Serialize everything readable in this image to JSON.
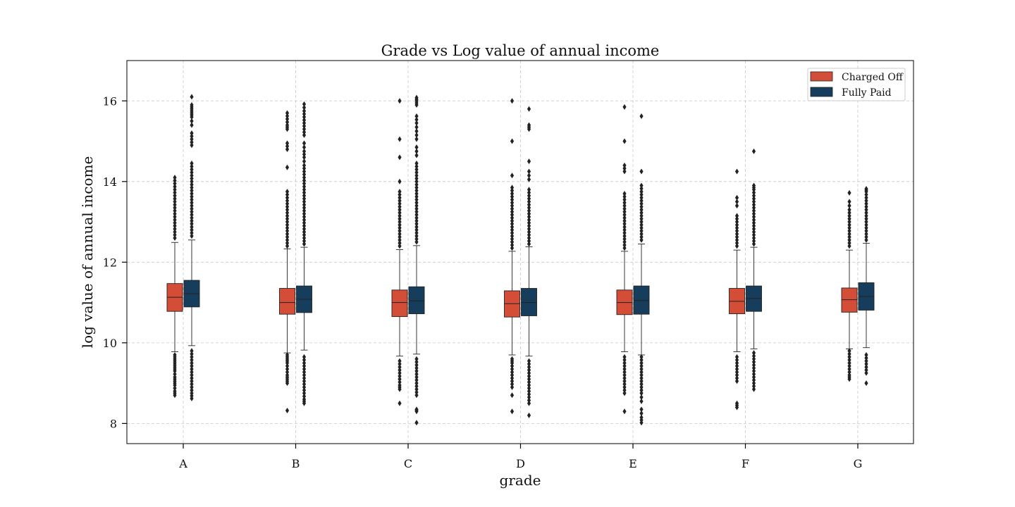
{
  "chart_data": {
    "type": "box",
    "title": "Grade vs Log value of annual income",
    "xlabel": "grade",
    "ylabel": "log value of annual income",
    "categories": [
      "A",
      "B",
      "C",
      "D",
      "E",
      "F",
      "G"
    ],
    "yticks": [
      8,
      10,
      12,
      14,
      16
    ],
    "ylim": [
      7.5,
      17.0
    ],
    "grid": true,
    "legend_position": "top-right",
    "series": [
      {
        "name": "Charged Off",
        "color": "#d44d37",
        "boxes": [
          {
            "q1": 10.78,
            "median": 11.13,
            "q3": 11.47,
            "whisker_low": 9.78,
            "whisker_high": 12.49,
            "outliers_low": [
              8.7,
              8.8,
              8.95,
              9.05,
              9.15,
              9.3,
              9.4,
              9.5,
              9.6,
              9.7
            ],
            "outliers_high": [
              12.6,
              12.75,
              12.9,
              13.05,
              13.2,
              13.35,
              13.5,
              13.65,
              13.8,
              13.95,
              14.1
            ]
          },
          {
            "q1": 10.71,
            "median": 11.0,
            "q3": 11.35,
            "whisker_low": 9.75,
            "whisker_high": 12.33,
            "outliers_low": [
              8.32,
              9.0,
              9.1,
              9.2,
              9.35,
              9.5,
              9.6,
              9.7
            ],
            "outliers_high": [
              12.4,
              12.55,
              12.7,
              12.85,
              13.0,
              13.15,
              13.3,
              13.45,
              13.6,
              13.75,
              14.35,
              14.8,
              14.95,
              15.3,
              15.4,
              15.55,
              15.7
            ]
          },
          {
            "q1": 10.65,
            "median": 11.0,
            "q3": 11.31,
            "whisker_low": 9.67,
            "whisker_high": 12.31,
            "outliers_low": [
              8.5,
              8.85,
              8.95,
              9.1,
              9.25,
              9.4,
              9.55
            ],
            "outliers_high": [
              12.4,
              12.55,
              12.7,
              12.85,
              13.0,
              13.15,
              13.3,
              13.45,
              13.6,
              13.75,
              14.0,
              14.6,
              15.05,
              16.0
            ]
          },
          {
            "q1": 10.64,
            "median": 10.97,
            "q3": 11.29,
            "whisker_low": 9.7,
            "whisker_high": 12.27,
            "outliers_low": [
              8.3,
              8.7,
              8.9,
              9.05,
              9.2,
              9.35,
              9.5,
              9.6
            ],
            "outliers_high": [
              12.35,
              12.5,
              12.65,
              12.8,
              12.95,
              13.1,
              13.25,
              13.4,
              13.55,
              13.7,
              13.85,
              14.15,
              15.0,
              16.0
            ]
          },
          {
            "q1": 10.7,
            "median": 11.0,
            "q3": 11.31,
            "whisker_low": 9.78,
            "whisker_high": 12.27,
            "outliers_low": [
              8.3,
              8.75,
              8.9,
              9.05,
              9.2,
              9.35,
              9.5,
              9.65
            ],
            "outliers_high": [
              12.35,
              12.5,
              12.65,
              12.8,
              12.95,
              13.1,
              13.25,
              13.4,
              13.55,
              13.7,
              14.25,
              14.4,
              15.0,
              15.85
            ]
          },
          {
            "q1": 10.72,
            "median": 11.03,
            "q3": 11.35,
            "whisker_low": 9.78,
            "whisker_high": 12.3,
            "outliers_low": [
              8.4,
              8.5,
              9.05,
              9.2,
              9.35,
              9.5,
              9.65
            ],
            "outliers_high": [
              12.4,
              12.55,
              12.7,
              12.85,
              13.0,
              13.15,
              13.4,
              13.6,
              14.25
            ]
          },
          {
            "q1": 10.76,
            "median": 11.07,
            "q3": 11.36,
            "whisker_low": 9.85,
            "whisker_high": 12.3,
            "outliers_low": [
              9.1,
              9.2,
              9.35,
              9.5,
              9.65,
              9.8
            ],
            "outliers_high": [
              12.4,
              12.55,
              12.7,
              12.85,
              13.0,
              13.15,
              13.3,
              13.5,
              13.72
            ]
          }
        ]
      },
      {
        "name": "Fully Paid",
        "color": "#163d5c",
        "boxes": [
          {
            "q1": 10.89,
            "median": 11.22,
            "q3": 11.55,
            "whisker_low": 9.93,
            "whisker_high": 12.55,
            "outliers_low": [
              8.62,
              8.75,
              8.9,
              9.05,
              9.2,
              9.35,
              9.5,
              9.65,
              9.8
            ],
            "outliers_high": [
              12.65,
              12.8,
              12.95,
              13.1,
              13.25,
              13.4,
              13.55,
              13.7,
              13.85,
              14.0,
              14.15,
              14.3,
              14.45,
              14.9,
              15.05,
              15.2,
              15.4,
              15.6,
              15.7,
              15.8,
              15.9,
              16.1
            ]
          },
          {
            "q1": 10.75,
            "median": 11.08,
            "q3": 11.41,
            "whisker_low": 9.82,
            "whisker_high": 12.37,
            "outliers_low": [
              8.5,
              8.6,
              8.75,
              8.9,
              9.05,
              9.2,
              9.35,
              9.5,
              9.65
            ],
            "outliers_high": [
              12.45,
              12.6,
              12.75,
              12.9,
              13.05,
              13.2,
              13.35,
              13.5,
              13.65,
              13.8,
              13.95,
              14.1,
              14.25,
              14.4,
              14.6,
              14.75,
              14.95,
              15.15,
              15.3,
              15.45,
              15.6,
              15.75,
              15.92
            ]
          },
          {
            "q1": 10.72,
            "median": 11.04,
            "q3": 11.39,
            "whisker_low": 9.72,
            "whisker_high": 12.41,
            "outliers_low": [
              8.02,
              8.3,
              8.35,
              8.7,
              8.85,
              9.0,
              9.15,
              9.3,
              9.45,
              9.6
            ],
            "outliers_high": [
              12.5,
              12.65,
              12.8,
              12.95,
              13.1,
              13.25,
              13.4,
              13.55,
              13.7,
              13.85,
              14.0,
              14.15,
              14.3,
              14.45,
              14.65,
              14.85,
              15.05,
              15.25,
              15.45,
              15.62,
              15.9,
              16.0,
              16.08
            ]
          },
          {
            "q1": 10.67,
            "median": 11.0,
            "q3": 11.35,
            "whisker_low": 9.67,
            "whisker_high": 12.38,
            "outliers_low": [
              8.2,
              8.5,
              8.65,
              8.8,
              8.95,
              9.1,
              9.25,
              9.4,
              9.55
            ],
            "outliers_high": [
              12.45,
              12.6,
              12.75,
              12.9,
              13.05,
              13.2,
              13.35,
              13.5,
              13.65,
              13.8,
              14.05,
              14.25,
              14.5,
              15.3,
              15.4,
              15.8
            ]
          },
          {
            "q1": 10.71,
            "median": 11.05,
            "q3": 11.41,
            "whisker_low": 9.7,
            "whisker_high": 12.45,
            "outliers_low": [
              8.02,
              8.15,
              8.35,
              8.55,
              8.75,
              8.9,
              9.05,
              9.2,
              9.35,
              9.5,
              9.65
            ],
            "outliers_high": [
              12.55,
              12.7,
              12.85,
              13.0,
              13.15,
              13.3,
              13.45,
              13.6,
              13.75,
              13.9,
              14.25,
              15.62
            ]
          },
          {
            "q1": 10.78,
            "median": 11.1,
            "q3": 11.41,
            "whisker_low": 9.85,
            "whisker_high": 12.37,
            "outliers_low": [
              8.85,
              9.0,
              9.15,
              9.3,
              9.45,
              9.6,
              9.75
            ],
            "outliers_high": [
              12.45,
              12.6,
              12.75,
              12.9,
              13.05,
              13.2,
              13.35,
              13.5,
              13.65,
              13.8,
              13.9,
              14.75
            ]
          },
          {
            "q1": 10.81,
            "median": 11.15,
            "q3": 11.49,
            "whisker_low": 9.88,
            "whisker_high": 12.47,
            "outliers_low": [
              9.0,
              9.25,
              9.4,
              9.55,
              9.7
            ],
            "outliers_high": [
              12.55,
              12.7,
              12.85,
              13.0,
              13.15,
              13.3,
              13.45,
              13.6,
              13.75,
              13.82
            ]
          }
        ]
      }
    ]
  }
}
